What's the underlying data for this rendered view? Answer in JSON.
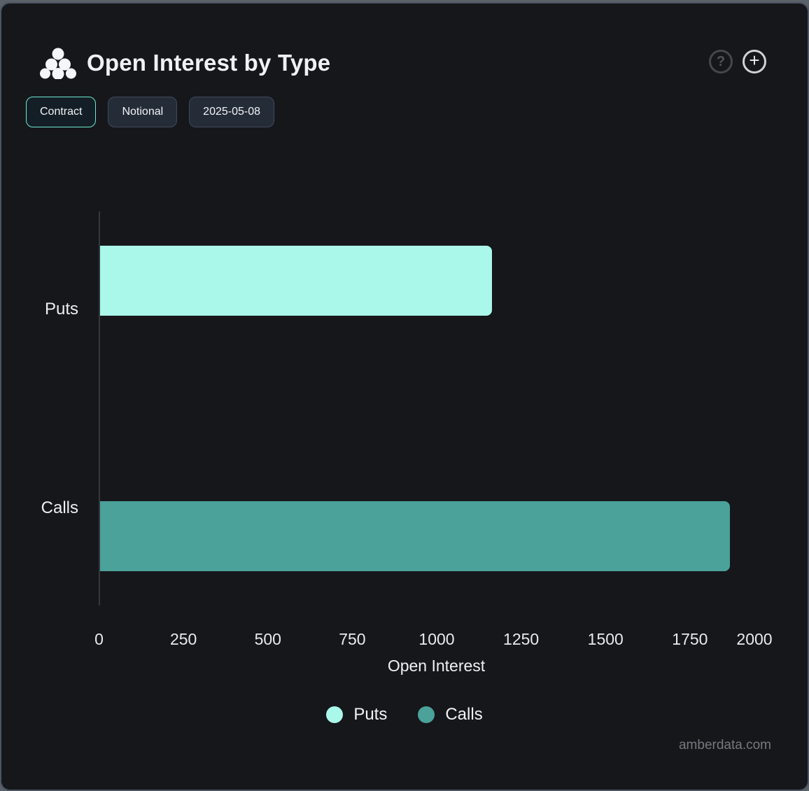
{
  "header": {
    "title": "Open Interest by Type",
    "help_label": "?",
    "add_label": "+"
  },
  "toolbar": {
    "buttons": [
      {
        "label": "Contract",
        "active": true
      },
      {
        "label": "Notional",
        "active": false
      },
      {
        "label": "2025-05-08",
        "active": false
      }
    ]
  },
  "chart_data": {
    "type": "bar",
    "orientation": "horizontal",
    "title": "Open Interest by Type",
    "categories": [
      "Puts",
      "Calls"
    ],
    "series": [
      {
        "name": "Puts",
        "color": "#a9f8ea",
        "values": [
          1160,
          null
        ]
      },
      {
        "name": "Calls",
        "color": "#4aa29a",
        "values": [
          null,
          1865
        ]
      }
    ],
    "xlabel": "Open Interest",
    "ylabel": "",
    "xlim": [
      0,
      2000
    ],
    "xticks": [
      0,
      250,
      500,
      750,
      1000,
      1250,
      1500,
      1750,
      2000
    ],
    "grid": false,
    "legend_position": "bottom",
    "legend": [
      {
        "label": "Puts",
        "color": "#a9f8ea"
      },
      {
        "label": "Calls",
        "color": "#4aa29a"
      }
    ],
    "colors": {
      "axis_line": "#34383e",
      "background": "#16171b"
    }
  },
  "footer": {
    "watermark": "amberdata.com"
  }
}
